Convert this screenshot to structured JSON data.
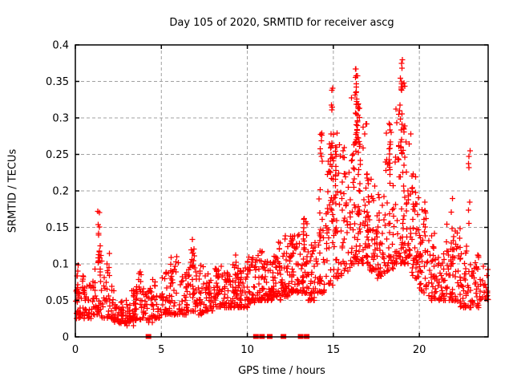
{
  "chart_data": {
    "type": "scatter",
    "title": "Day 105 of 2020, SRMTID for receiver ascg",
    "xlabel": "GPS time / hours",
    "ylabel": "SRMTID / TECUs",
    "xlim": [
      0,
      24
    ],
    "ylim": [
      0,
      0.4
    ],
    "xticks": [
      0,
      5,
      10,
      15,
      20
    ],
    "xtick_labels": [
      "0",
      "5",
      "10",
      "15",
      "20"
    ],
    "yticks": [
      0,
      0.05,
      0.1,
      0.15,
      0.2,
      0.25,
      0.3,
      0.35,
      0.4
    ],
    "ytick_labels": [
      "0",
      "0.05",
      "0.1",
      "0.15",
      "0.2",
      "0.25",
      "0.3",
      "0.35",
      "0.4"
    ],
    "grid": true,
    "legend": false,
    "marker": "plus-cross",
    "marker_color": "#ff0000",
    "grid_color": "#a0a0a0",
    "axis_color": "#000000",
    "background": "#ffffff",
    "seed": 105,
    "density_bins": [
      [
        0.0,
        0.025,
        0.085,
        34
      ],
      [
        0.5,
        0.025,
        0.075,
        30
      ],
      [
        1.0,
        0.03,
        0.1,
        30
      ],
      [
        1.5,
        0.025,
        0.12,
        30
      ],
      [
        2.0,
        0.02,
        0.07,
        34
      ],
      [
        2.5,
        0.018,
        0.06,
        34
      ],
      [
        3.0,
        0.015,
        0.065,
        34
      ],
      [
        3.5,
        0.02,
        0.09,
        32
      ],
      [
        4.0,
        0.02,
        0.07,
        30
      ],
      [
        4.5,
        0.025,
        0.08,
        30
      ],
      [
        5.0,
        0.03,
        0.09,
        32
      ],
      [
        5.5,
        0.03,
        0.11,
        30
      ],
      [
        6.0,
        0.03,
        0.09,
        32
      ],
      [
        6.5,
        0.035,
        0.12,
        32
      ],
      [
        7.0,
        0.03,
        0.1,
        34
      ],
      [
        7.5,
        0.035,
        0.09,
        34
      ],
      [
        8.0,
        0.04,
        0.1,
        36
      ],
      [
        8.5,
        0.04,
        0.09,
        36
      ],
      [
        9.0,
        0.04,
        0.1,
        36
      ],
      [
        9.5,
        0.04,
        0.1,
        36
      ],
      [
        10.0,
        0.045,
        0.11,
        38
      ],
      [
        10.5,
        0.05,
        0.12,
        38
      ],
      [
        11.0,
        0.05,
        0.11,
        38
      ],
      [
        11.5,
        0.05,
        0.13,
        38
      ],
      [
        12.0,
        0.055,
        0.14,
        40
      ],
      [
        12.5,
        0.06,
        0.14,
        40
      ],
      [
        13.0,
        0.06,
        0.16,
        40
      ],
      [
        13.5,
        0.05,
        0.13,
        38
      ],
      [
        14.0,
        0.06,
        0.2,
        36
      ],
      [
        14.5,
        0.07,
        0.3,
        36
      ],
      [
        15.0,
        0.08,
        0.28,
        38
      ],
      [
        15.5,
        0.09,
        0.26,
        38
      ],
      [
        16.0,
        0.1,
        0.34,
        40
      ],
      [
        16.5,
        0.1,
        0.3,
        40
      ],
      [
        17.0,
        0.09,
        0.22,
        40
      ],
      [
        17.5,
        0.08,
        0.2,
        38
      ],
      [
        18.0,
        0.09,
        0.28,
        38
      ],
      [
        18.5,
        0.1,
        0.34,
        40
      ],
      [
        19.0,
        0.1,
        0.32,
        40
      ],
      [
        19.5,
        0.08,
        0.22,
        38
      ],
      [
        20.0,
        0.06,
        0.18,
        36
      ],
      [
        20.5,
        0.05,
        0.15,
        36
      ],
      [
        21.0,
        0.05,
        0.13,
        34
      ],
      [
        21.5,
        0.05,
        0.18,
        34
      ],
      [
        22.0,
        0.04,
        0.15,
        34
      ],
      [
        22.5,
        0.04,
        0.13,
        32
      ],
      [
        23.0,
        0.04,
        0.12,
        32
      ],
      [
        23.5,
        0.05,
        0.1,
        24
      ]
    ],
    "spikes": [
      [
        0.15,
        0.055,
        0.1,
        8
      ],
      [
        1.35,
        0.1,
        0.175,
        12
      ],
      [
        1.45,
        0.08,
        0.13,
        6
      ],
      [
        3.75,
        0.06,
        0.095,
        5
      ],
      [
        5.6,
        0.07,
        0.11,
        5
      ],
      [
        6.85,
        0.095,
        0.14,
        7
      ],
      [
        9.3,
        0.08,
        0.115,
        5
      ],
      [
        11.9,
        0.09,
        0.13,
        6
      ],
      [
        12.6,
        0.1,
        0.14,
        6
      ],
      [
        13.3,
        0.12,
        0.165,
        8
      ],
      [
        14.3,
        0.2,
        0.29,
        9
      ],
      [
        14.9,
        0.15,
        0.345,
        20
      ],
      [
        15.1,
        0.12,
        0.27,
        10
      ],
      [
        16.2,
        0.12,
        0.3,
        10
      ],
      [
        16.35,
        0.25,
        0.385,
        24
      ],
      [
        16.5,
        0.14,
        0.33,
        16
      ],
      [
        17.0,
        0.12,
        0.25,
        8
      ],
      [
        18.3,
        0.22,
        0.295,
        14
      ],
      [
        18.95,
        0.24,
        0.385,
        20
      ],
      [
        19.1,
        0.14,
        0.35,
        14
      ],
      [
        19.6,
        0.12,
        0.235,
        7
      ],
      [
        20.3,
        0.1,
        0.185,
        7
      ],
      [
        21.9,
        0.1,
        0.19,
        9
      ],
      [
        22.9,
        0.15,
        0.262,
        7
      ]
    ],
    "zero_markers": [
      4.25,
      10.5,
      10.85,
      11.3,
      12.1,
      13.1,
      13.45
    ],
    "max_value": 0.385,
    "notable_peaks": [
      {
        "x": 1.35,
        "y": 0.175
      },
      {
        "x": 16.35,
        "y": 0.385
      },
      {
        "x": 18.95,
        "y": 0.385
      },
      {
        "x": 22.9,
        "y": 0.262
      }
    ]
  }
}
